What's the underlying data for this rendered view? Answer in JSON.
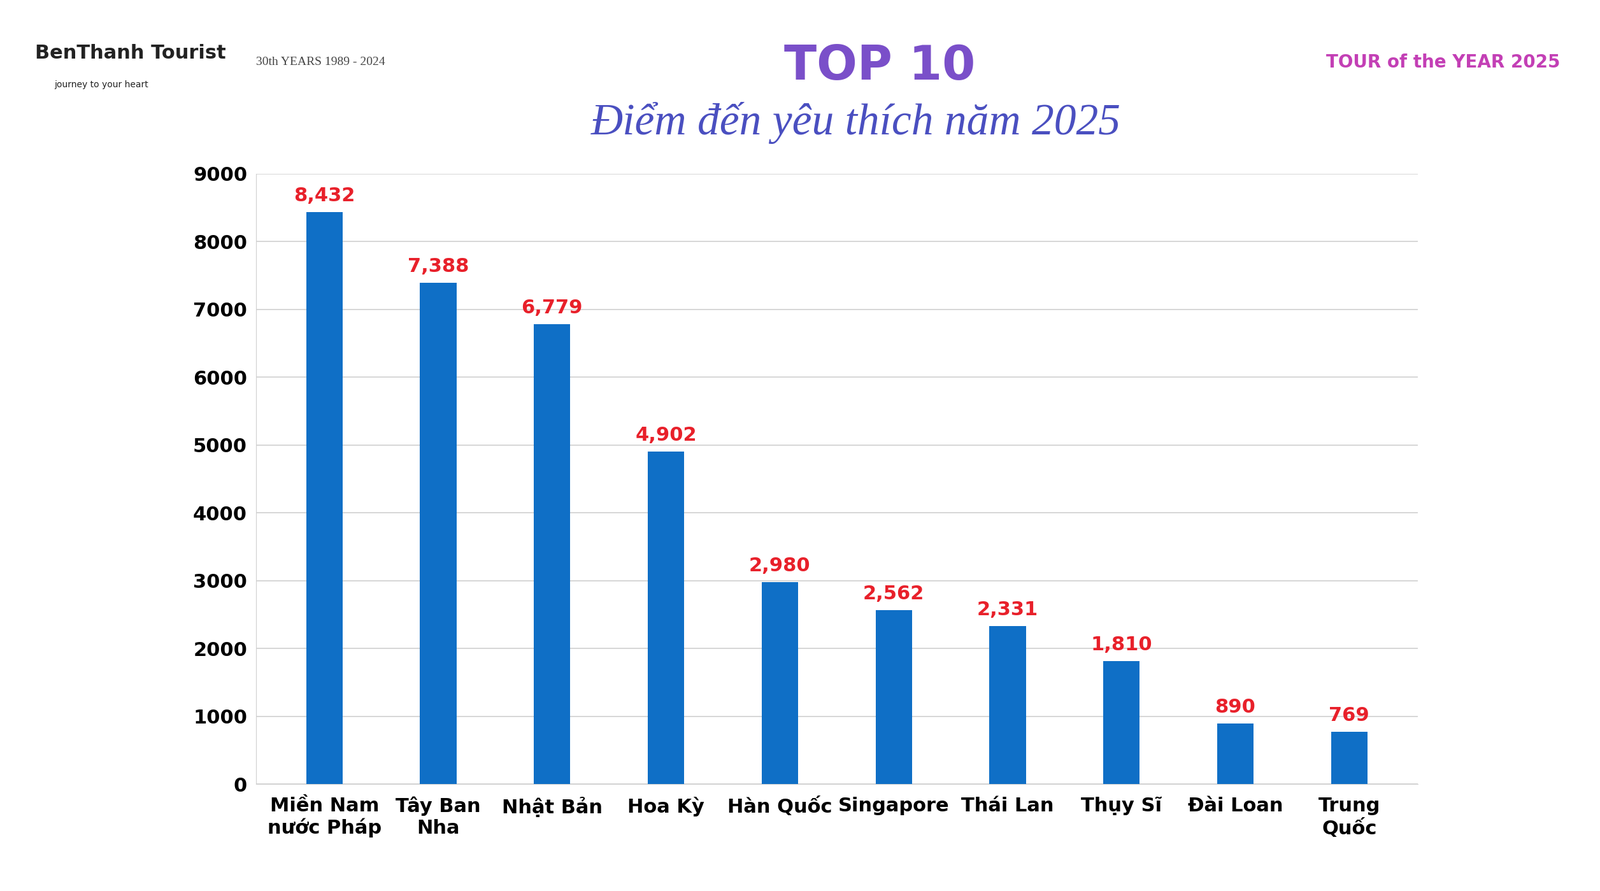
{
  "chart_data": {
    "type": "bar",
    "title": "TOP 10",
    "subtitle": "Điểm đến yêu thích năm 2025",
    "annotations": [
      "BenThanh Tourist",
      "journey to your heart",
      "30th YEARS 1989 - 2024",
      "TOUR of the YEAR 2025"
    ],
    "categories": [
      "Miền Nam nước Pháp",
      "Tây Ban Nha",
      "Nhật Bản",
      "Hoa Kỳ",
      "Hàn Quốc",
      "Singapore",
      "Thái Lan",
      "Thụy Sĩ",
      "Đài Loan",
      "Trung Quốc"
    ],
    "values": [
      8432,
      7388,
      6779,
      4902,
      2980,
      2562,
      2331,
      1810,
      890,
      769
    ],
    "value_labels": [
      "8,432",
      "7,388",
      "6,779",
      "4,902",
      "2,980",
      "2,562",
      "2,331",
      "1,810",
      "890",
      "769"
    ],
    "color": "#0f6fc6",
    "data_labels": true,
    "ylim": [
      0,
      9000
    ],
    "yticks": [
      0,
      1000,
      2000,
      3000,
      4000,
      5000,
      6000,
      7000,
      8000,
      9000
    ],
    "grid": true
  }
}
